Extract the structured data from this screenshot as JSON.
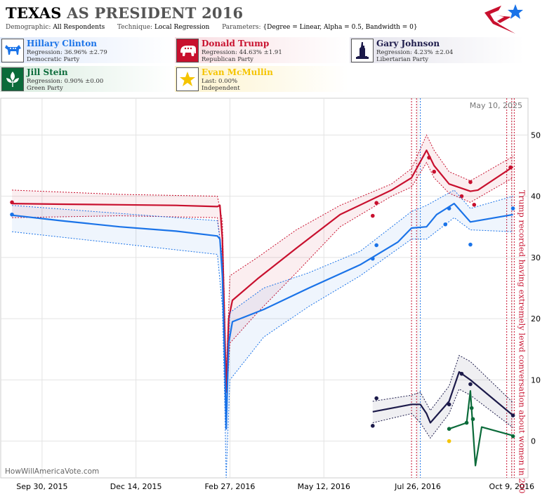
{
  "header": {
    "title_state": "TEXAS",
    "title_rest": "AS PRESIDENT 2016",
    "demographic_label": "Demographic:",
    "demographic_value": "All Respondents",
    "technique_label": "Technique:",
    "technique_value": "Local Regression",
    "parameters_label": "Parameters:",
    "parameters_value": "{Degree = Linear, Alpha = 0.5, Bandwidth = 0}"
  },
  "candidates": [
    {
      "name": "Hillary Clinton",
      "line1": "Regression: 36.96% ±2.79",
      "line2": "Democratic Party",
      "color": "#1a73e8",
      "icon": "donkey-icon"
    },
    {
      "name": "Donald Trump",
      "line1": "Regression: 44.63% ±1.91",
      "line2": "Republican Party",
      "color": "#c8102e",
      "icon": "elephant-icon"
    },
    {
      "name": "Gary Johnson",
      "line1": "Regression: 4.23% ±2.04",
      "line2": "Libertarian Party",
      "color": "#1c1a4a",
      "icon": "statue-of-liberty-icon"
    },
    {
      "name": "Jill Stein",
      "line1": "Regression: 0.90% ±0.00",
      "line2": "Green Party",
      "color": "#0b6b3a",
      "icon": "green-leaf-icon"
    },
    {
      "name": "Evan McMullin",
      "line1": "Last: 0.00%",
      "line2": "Independent",
      "color": "#f5c400",
      "icon": "star-icon"
    }
  ],
  "chart_data": {
    "type": "line",
    "date_label": "May 10, 2025",
    "watermark": "HowWillAmericaVote.com",
    "annotation": "Trump recorded having extremely lewd conversation about women in 2005",
    "annotation_date": "2016-10-07",
    "x_ticks": [
      {
        "date": "2015-09-30",
        "label": "Sep 30, 2015"
      },
      {
        "date": "2015-12-14",
        "label": "Dec 14, 2015"
      },
      {
        "date": "2016-02-27",
        "label": "Feb 27, 2016"
      },
      {
        "date": "2016-05-12",
        "label": "May 12, 2016"
      },
      {
        "date": "2016-07-26",
        "label": "Jul 26, 2016"
      },
      {
        "date": "2016-10-09",
        "label": "Oct 9, 2016"
      }
    ],
    "xlim": [
      "2015-08-28",
      "2016-10-22"
    ],
    "y_ticks": [
      0,
      10,
      20,
      30,
      40,
      50
    ],
    "ylim": [
      -6,
      56
    ],
    "grid": true,
    "event_lines": [
      {
        "date": "2016-07-21",
        "color": "#c8102e"
      },
      {
        "date": "2016-07-25",
        "color": "#c8102e"
      },
      {
        "date": "2016-07-28",
        "color": "#1a73e8"
      },
      {
        "date": "2016-10-05",
        "color": "#c8102e"
      },
      {
        "date": "2016-10-09",
        "color": "#c8102e"
      },
      {
        "date": "2016-10-11",
        "color": "#c8102e"
      }
    ],
    "series": [
      {
        "name": "Donald Trump",
        "color": "#c8102e",
        "line": [
          [
            "2015-09-06",
            38.8
          ],
          [
            "2015-10-15",
            38.7
          ],
          [
            "2015-12-01",
            38.6
          ],
          [
            "2016-01-15",
            38.5
          ],
          [
            "2016-02-17",
            38.3
          ],
          [
            "2016-02-19",
            38.5
          ],
          [
            "2016-02-21",
            33.0
          ],
          [
            "2016-02-23",
            17.0
          ],
          [
            "2016-02-24",
            8.0
          ],
          [
            "2016-02-26",
            20.0
          ],
          [
            "2016-02-29",
            23.0
          ],
          [
            "2016-03-20",
            26.5
          ],
          [
            "2016-04-20",
            31.5
          ],
          [
            "2016-05-25",
            37.0
          ],
          [
            "2016-07-05",
            41.0
          ],
          [
            "2016-07-21",
            43.0
          ],
          [
            "2016-08-02",
            47.5
          ],
          [
            "2016-08-08",
            45.0
          ],
          [
            "2016-08-20",
            42.0
          ],
          [
            "2016-09-06",
            40.8
          ],
          [
            "2016-09-12",
            41.0
          ],
          [
            "2016-10-10",
            44.8
          ]
        ],
        "upper": [
          [
            "2015-09-06",
            41.0
          ],
          [
            "2015-12-01",
            40.3
          ],
          [
            "2016-02-17",
            40.0
          ],
          [
            "2016-02-21",
            36.0
          ],
          [
            "2016-02-23",
            20.0
          ],
          [
            "2016-02-24",
            11.0
          ],
          [
            "2016-02-27",
            27.0
          ],
          [
            "2016-03-20",
            30.0
          ],
          [
            "2016-04-20",
            34.5
          ],
          [
            "2016-05-25",
            38.5
          ],
          [
            "2016-07-05",
            42.0
          ],
          [
            "2016-07-21",
            44.5
          ],
          [
            "2016-08-02",
            50.0
          ],
          [
            "2016-08-08",
            47.5
          ],
          [
            "2016-08-20",
            44.0
          ],
          [
            "2016-09-06",
            42.5
          ],
          [
            "2016-10-10",
            46.5
          ]
        ],
        "lower": [
          [
            "2015-09-06",
            36.5
          ],
          [
            "2015-12-01",
            36.8
          ],
          [
            "2016-02-17",
            36.5
          ],
          [
            "2016-02-21",
            30.0
          ],
          [
            "2016-02-23",
            14.0
          ],
          [
            "2016-02-24",
            5.0
          ],
          [
            "2016-02-27",
            16.0
          ],
          [
            "2016-03-20",
            21.0
          ],
          [
            "2016-04-20",
            27.5
          ],
          [
            "2016-05-25",
            35.0
          ],
          [
            "2016-07-05",
            40.0
          ],
          [
            "2016-07-21",
            41.5
          ],
          [
            "2016-08-02",
            45.5
          ],
          [
            "2016-08-08",
            43.0
          ],
          [
            "2016-08-20",
            40.5
          ],
          [
            "2016-09-06",
            39.0
          ],
          [
            "2016-10-10",
            43.0
          ]
        ],
        "points": [
          [
            "2015-09-06",
            39
          ],
          [
            "2016-06-20",
            36.8
          ],
          [
            "2016-06-23",
            38.9
          ],
          [
            "2016-08-04",
            46.3
          ],
          [
            "2016-08-08",
            44
          ],
          [
            "2016-08-30",
            40.0
          ],
          [
            "2016-09-06",
            42.3
          ],
          [
            "2016-09-09",
            38.6
          ],
          [
            "2016-10-08",
            44.7
          ]
        ]
      },
      {
        "name": "Hillary Clinton",
        "color": "#1a73e8",
        "line": [
          [
            "2015-09-06",
            36.9
          ],
          [
            "2015-10-15",
            36.0
          ],
          [
            "2015-12-01",
            35.0
          ],
          [
            "2016-01-15",
            34.3
          ],
          [
            "2016-02-17",
            33.5
          ],
          [
            "2016-02-19",
            33.0
          ],
          [
            "2016-02-21",
            27.0
          ],
          [
            "2016-02-23",
            12.0
          ],
          [
            "2016-02-24",
            2.0
          ],
          [
            "2016-02-26",
            16.0
          ],
          [
            "2016-02-29",
            19.5
          ],
          [
            "2016-03-25",
            21.5
          ],
          [
            "2016-04-30",
            25.0
          ],
          [
            "2016-06-10",
            28.8
          ],
          [
            "2016-07-10",
            32.5
          ],
          [
            "2016-07-21",
            34.8
          ],
          [
            "2016-08-02",
            35.0
          ],
          [
            "2016-08-10",
            37.0
          ],
          [
            "2016-08-24",
            38.8
          ],
          [
            "2016-09-06",
            35.8
          ],
          [
            "2016-10-10",
            37.0
          ]
        ],
        "upper": [
          [
            "2015-09-06",
            38.5
          ],
          [
            "2016-02-17",
            36.0
          ],
          [
            "2016-02-21",
            30.0
          ],
          [
            "2016-02-23",
            15.0
          ],
          [
            "2016-02-24",
            5.0
          ],
          [
            "2016-02-27",
            21.0
          ],
          [
            "2016-03-25",
            25.0
          ],
          [
            "2016-04-30",
            27.5
          ],
          [
            "2016-06-10",
            31.0
          ],
          [
            "2016-07-21",
            37.5
          ],
          [
            "2016-08-02",
            38.5
          ],
          [
            "2016-08-24",
            41.0
          ],
          [
            "2016-09-06",
            38.0
          ],
          [
            "2016-10-10",
            40.0
          ]
        ],
        "lower": [
          [
            "2015-09-06",
            34.2
          ],
          [
            "2016-02-17",
            30.5
          ],
          [
            "2016-02-21",
            22.0
          ],
          [
            "2016-02-23",
            5.0
          ],
          [
            "2016-02-24",
            -6.0
          ],
          [
            "2016-02-27",
            10.0
          ],
          [
            "2016-03-25",
            17.0
          ],
          [
            "2016-04-30",
            22.0
          ],
          [
            "2016-06-10",
            27.0
          ],
          [
            "2016-07-21",
            33.0
          ],
          [
            "2016-08-02",
            33.0
          ],
          [
            "2016-08-24",
            36.5
          ],
          [
            "2016-09-06",
            34.5
          ],
          [
            "2016-10-10",
            34.2
          ]
        ],
        "points": [
          [
            "2015-09-06",
            37
          ],
          [
            "2016-06-20",
            29.8
          ],
          [
            "2016-06-23",
            32.0
          ],
          [
            "2016-08-17",
            35.4
          ],
          [
            "2016-08-20",
            38.0
          ],
          [
            "2016-09-06",
            32.1
          ],
          [
            "2016-10-10",
            38.0
          ]
        ]
      },
      {
        "name": "Gary Johnson",
        "color": "#1c1a4a",
        "line": [
          [
            "2016-06-20",
            4.8
          ],
          [
            "2016-07-21",
            6.0
          ],
          [
            "2016-07-28",
            6.0
          ],
          [
            "2016-08-02",
            4.5
          ],
          [
            "2016-08-05",
            3.0
          ],
          [
            "2016-08-20",
            6.5
          ],
          [
            "2016-08-28",
            11.3
          ],
          [
            "2016-09-06",
            10.0
          ],
          [
            "2016-10-10",
            4.2
          ]
        ],
        "upper": [
          [
            "2016-06-20",
            6.5
          ],
          [
            "2016-07-21",
            7.5
          ],
          [
            "2016-07-28",
            8.0
          ],
          [
            "2016-08-05",
            5.0
          ],
          [
            "2016-08-20",
            9.0
          ],
          [
            "2016-08-28",
            14.0
          ],
          [
            "2016-09-06",
            13.0
          ],
          [
            "2016-10-10",
            6.3
          ]
        ],
        "lower": [
          [
            "2016-06-20",
            3.0
          ],
          [
            "2016-07-21",
            4.5
          ],
          [
            "2016-07-28",
            3.0
          ],
          [
            "2016-08-05",
            0.5
          ],
          [
            "2016-08-20",
            4.5
          ],
          [
            "2016-08-28",
            8.5
          ],
          [
            "2016-09-06",
            7.5
          ],
          [
            "2016-10-10",
            2.2
          ]
        ],
        "points": [
          [
            "2016-06-20",
            2.5
          ],
          [
            "2016-06-23",
            7.0
          ],
          [
            "2016-08-20",
            6.0
          ],
          [
            "2016-08-30",
            11.0
          ],
          [
            "2016-09-06",
            9.3
          ],
          [
            "2016-10-10",
            4.2
          ]
        ]
      },
      {
        "name": "Jill Stein",
        "color": "#0b6b3a",
        "line": [
          [
            "2016-08-20",
            2.0
          ],
          [
            "2016-09-03",
            3.0
          ],
          [
            "2016-09-06",
            8.2
          ],
          [
            "2016-09-10",
            -4.0
          ],
          [
            "2016-09-15",
            2.3
          ],
          [
            "2016-10-10",
            0.9
          ]
        ],
        "points": [
          [
            "2016-08-20",
            2.0
          ],
          [
            "2016-09-03",
            3.0
          ],
          [
            "2016-09-07",
            5.4
          ],
          [
            "2016-09-08",
            3.6
          ],
          [
            "2016-10-10",
            0.8
          ]
        ]
      },
      {
        "name": "Evan McMullin",
        "color": "#f5c400",
        "points": [
          [
            "2016-08-20",
            0.0
          ]
        ]
      }
    ]
  }
}
